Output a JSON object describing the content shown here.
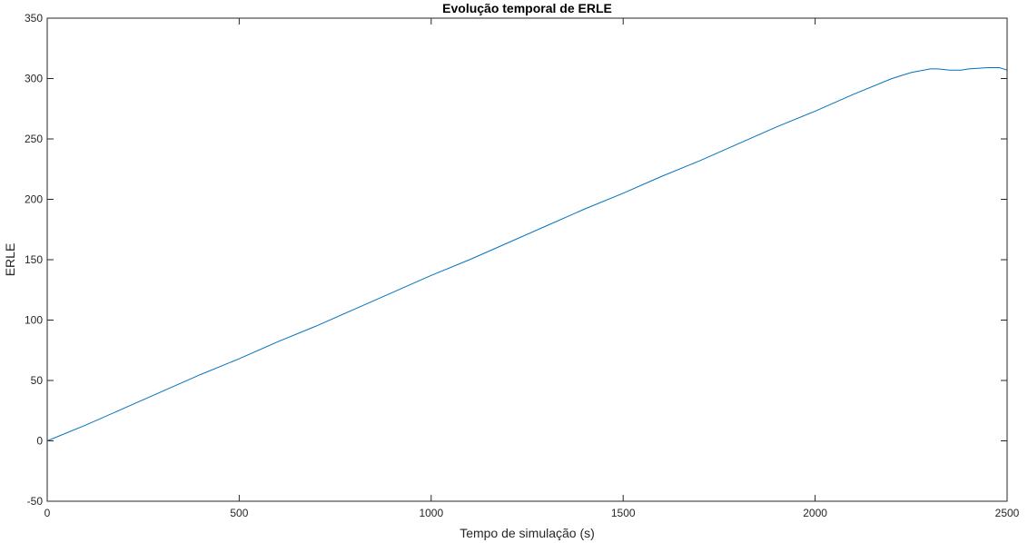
{
  "chart_data": {
    "type": "line",
    "title": "Evolução temporal de ERLE",
    "xlabel": "Tempo de simulação (s)",
    "ylabel": "ERLE",
    "xlim": [
      0,
      2500
    ],
    "ylim": [
      -50,
      350
    ],
    "xticks": [
      0,
      500,
      1000,
      1500,
      2000,
      2500
    ],
    "yticks": [
      -50,
      0,
      50,
      100,
      150,
      200,
      250,
      300,
      350
    ],
    "grid": false,
    "line_color": "#0072BD",
    "series": [
      {
        "x": [
          0,
          100,
          200,
          300,
          400,
          500,
          600,
          700,
          800,
          900,
          1000,
          1100,
          1200,
          1300,
          1400,
          1500,
          1600,
          1700,
          1800,
          1900,
          2000,
          2100,
          2200,
          2250,
          2300,
          2320,
          2350,
          2380,
          2400,
          2450,
          2480,
          2500
        ],
        "y": [
          0,
          13,
          27,
          41,
          55,
          68,
          82,
          95,
          109,
          123,
          137,
          150,
          164,
          178,
          192,
          205,
          219,
          232,
          246,
          260,
          273,
          287,
          300,
          305,
          308,
          308,
          307,
          307,
          308,
          309,
          309,
          307
        ]
      }
    ]
  }
}
